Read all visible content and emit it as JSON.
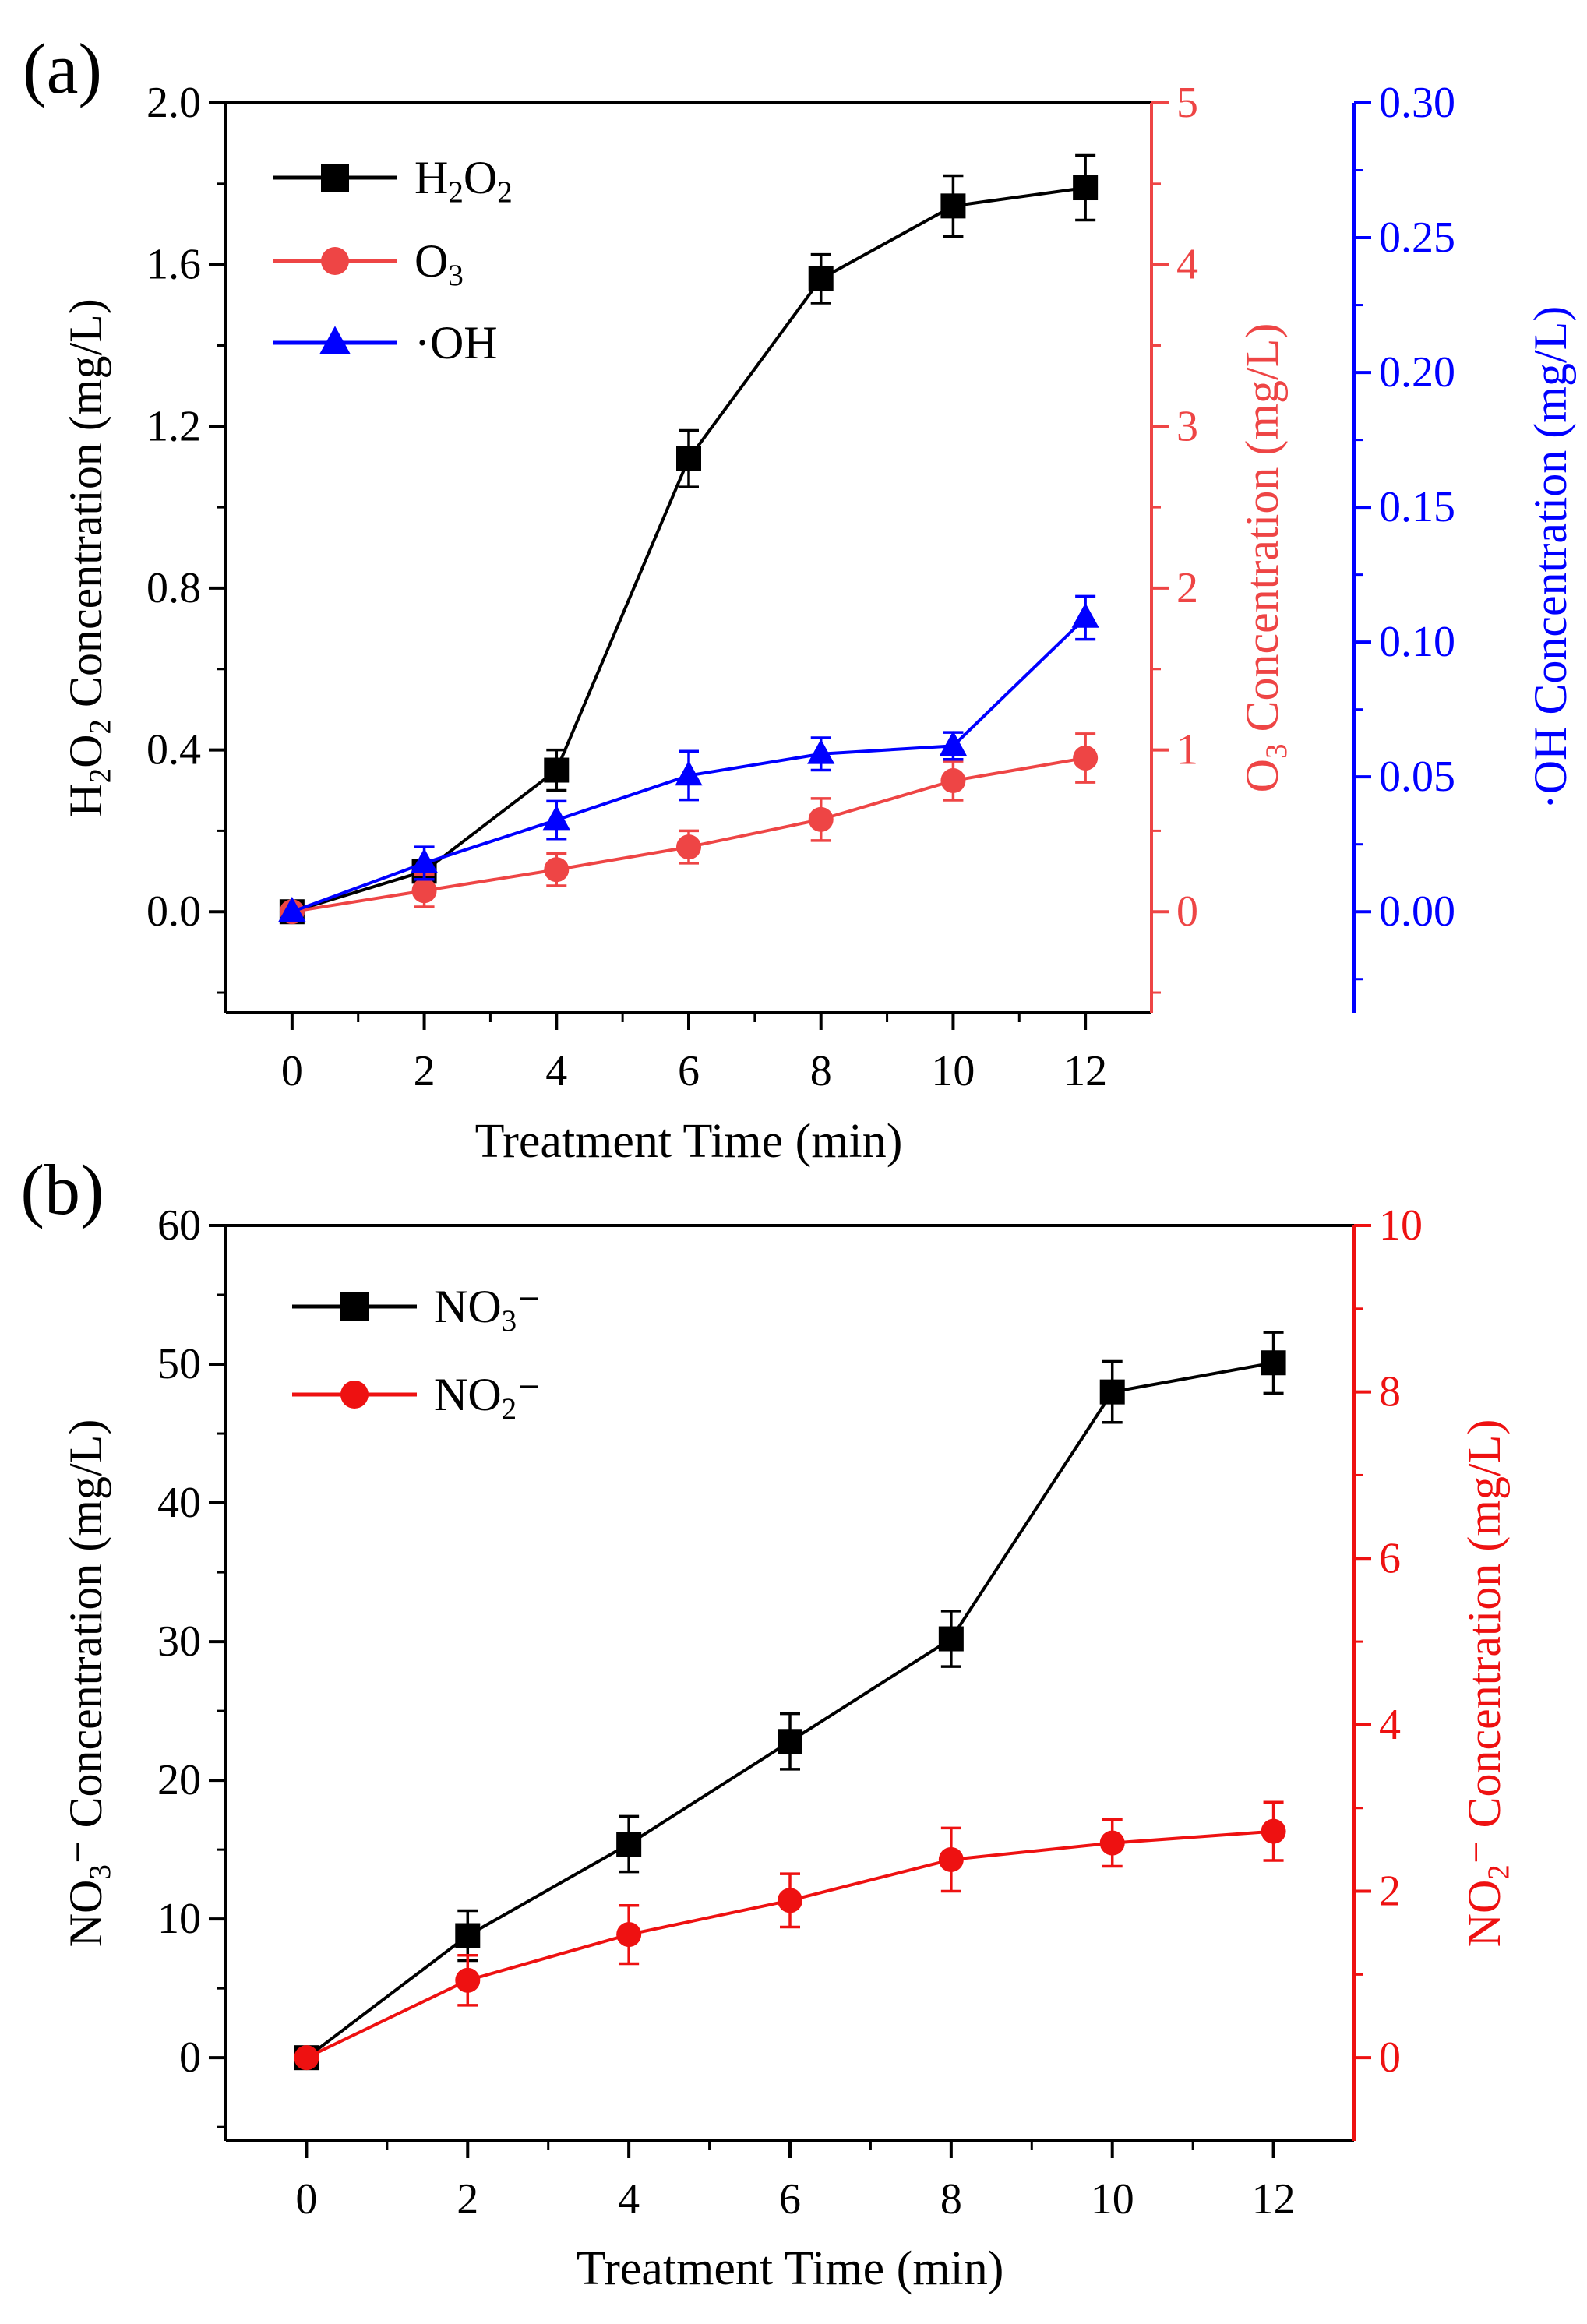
{
  "chart_data": [
    {
      "type": "line",
      "panel_label": "(a)",
      "xlabel": "Treatment Time (min)",
      "xlim": [
        -1,
        13
      ],
      "xticks": [
        0,
        2,
        4,
        6,
        8,
        10,
        12
      ],
      "x": [
        0,
        2,
        4,
        6,
        8,
        10,
        12
      ],
      "legend_position": "top-left",
      "axes": [
        {
          "id": "left",
          "side": "left",
          "label_parts": [
            "H",
            "2",
            "O",
            "2",
            " Concentration (mg/L)"
          ],
          "color": "#000000",
          "ylim": [
            -0.25,
            2.0
          ],
          "ticks": [
            0.0,
            0.4,
            0.8,
            1.2,
            1.6,
            2.0
          ],
          "tick_labels": [
            "0.0",
            "0.4",
            "0.8",
            "1.2",
            "1.6",
            "2.0"
          ]
        },
        {
          "id": "right1",
          "side": "right",
          "label_parts": [
            "O",
            "3",
            " Concentration (mg/L)"
          ],
          "color": "#ee4545",
          "ylim": [
            -0.625,
            5.0
          ],
          "ticks": [
            0,
            1,
            2,
            3,
            4,
            5
          ],
          "tick_labels": [
            "0",
            "1",
            "2",
            "3",
            "4",
            "5"
          ]
        },
        {
          "id": "right2",
          "side": "right-offset",
          "label_parts": [
            "·OH Concentration (mg/L)"
          ],
          "color": "#0000ff",
          "ylim": [
            -0.0375,
            0.3
          ],
          "ticks": [
            0.0,
            0.05,
            0.1,
            0.15,
            0.2,
            0.25,
            0.3
          ],
          "tick_labels": [
            "0.00",
            "0.05",
            "0.10",
            "0.15",
            "0.20",
            "0.25",
            "0.30"
          ]
        }
      ],
      "series": [
        {
          "name_parts": [
            "H",
            "2",
            "O",
            "2"
          ],
          "axis": "left",
          "color": "#000000",
          "marker": "square",
          "values": [
            0.0,
            0.1,
            0.35,
            1.12,
            1.565,
            1.745,
            1.79
          ],
          "errors": [
            0.0,
            0.02,
            0.05,
            0.07,
            0.06,
            0.075,
            0.08
          ]
        },
        {
          "name_parts": [
            "O",
            "3"
          ],
          "axis": "right1",
          "color": "#ee4545",
          "marker": "circle",
          "values": [
            0.0,
            0.13,
            0.26,
            0.4,
            0.57,
            0.81,
            0.95
          ],
          "errors": [
            0.0,
            0.1,
            0.1,
            0.1,
            0.13,
            0.12,
            0.15
          ]
        },
        {
          "name_parts": [
            "·OH"
          ],
          "axis": "right2",
          "color": "#0000ff",
          "marker": "triangle",
          "values": [
            0.0,
            0.018,
            0.034,
            0.0505,
            0.0585,
            0.0615,
            0.109
          ],
          "errors": [
            0.0,
            0.006,
            0.007,
            0.009,
            0.006,
            0.005,
            0.008
          ]
        }
      ]
    },
    {
      "type": "line",
      "panel_label": "(b)",
      "xlabel": "Treatment Time (min)",
      "xlim": [
        -1,
        13
      ],
      "xticks": [
        0,
        2,
        4,
        6,
        8,
        10,
        12
      ],
      "x": [
        0,
        2,
        4,
        6,
        8,
        10,
        12
      ],
      "legend_position": "top-left",
      "axes": [
        {
          "id": "left",
          "side": "left",
          "label_parts": [
            "NO",
            "3",
            "⁻ Concentration (mg/L)"
          ],
          "color": "#000000",
          "ylim": [
            -6,
            60
          ],
          "ticks": [
            0,
            10,
            20,
            30,
            40,
            50,
            60
          ],
          "tick_labels": [
            "0",
            "10",
            "20",
            "30",
            "40",
            "50",
            "60"
          ]
        },
        {
          "id": "right1",
          "side": "right",
          "label_parts": [
            "NO",
            "2",
            "⁻ Concentration (mg/L)"
          ],
          "color": "#ee1111",
          "ylim": [
            -1,
            10
          ],
          "ticks": [
            0,
            2,
            4,
            6,
            8,
            10
          ],
          "tick_labels": [
            "0",
            "2",
            "4",
            "6",
            "8",
            "10"
          ]
        }
      ],
      "series": [
        {
          "name_parts": [
            "NO",
            "3",
            "⁻"
          ],
          "axis": "left",
          "color": "#000000",
          "marker": "square",
          "values": [
            0,
            8.8,
            15.4,
            22.8,
            30.2,
            48.0,
            50.1
          ],
          "errors": [
            0,
            1.8,
            2.0,
            2.0,
            2.0,
            2.2,
            2.2
          ]
        },
        {
          "name_parts": [
            "NO",
            "2",
            "⁻"
          ],
          "axis": "right1",
          "color": "#ee1111",
          "marker": "circle",
          "values": [
            0,
            0.93,
            1.48,
            1.89,
            2.38,
            2.58,
            2.72
          ],
          "errors": [
            0,
            0.3,
            0.35,
            0.32,
            0.38,
            0.28,
            0.35
          ]
        }
      ]
    }
  ]
}
